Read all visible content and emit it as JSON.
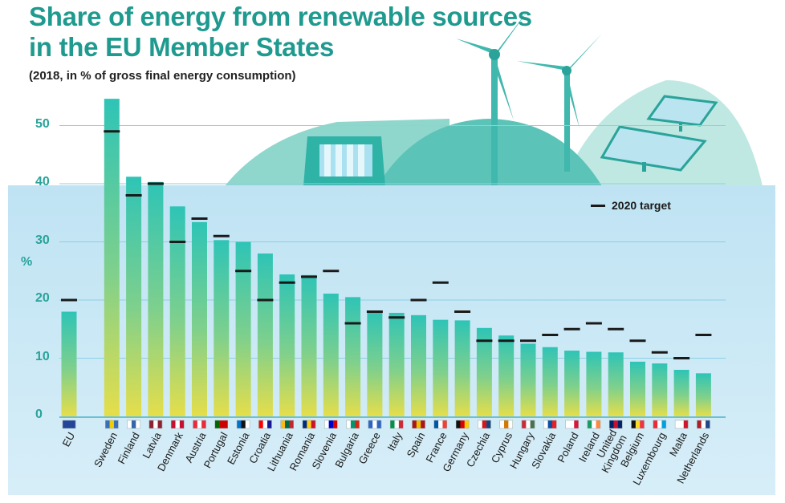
{
  "chart_data": {
    "type": "bar",
    "title": "Share of energy from renewable sources in the EU Member States",
    "title_lines": [
      "Share of energy from renewable sources",
      "in the EU Member States"
    ],
    "subtitle": "(2018, in % of gross final energy consumption)",
    "ylabel": "%",
    "ylim": [
      0,
      55
    ],
    "yticks": [
      0,
      10,
      20,
      30,
      40,
      50
    ],
    "grid": true,
    "legend": {
      "label": "2020 target",
      "placement": "top-right"
    },
    "categories": [
      "EU",
      "Sweden",
      "Finland",
      "Latvia",
      "Denmark",
      "Austria",
      "Portugal",
      "Estonia",
      "Croatia",
      "Lithuania",
      "Romania",
      "Slovenia",
      "Bulgaria",
      "Greece",
      "Italy",
      "Spain",
      "France",
      "Germany",
      "Czechia",
      "Cyprus",
      "Hungary",
      "Slovakia",
      "Poland",
      "Ireland",
      "United Kingdom",
      "Belgium",
      "Luxembourg",
      "Malta",
      "Netherlands"
    ],
    "category_label_lines": [
      [
        "EU"
      ],
      [
        "Sweden"
      ],
      [
        "Finland"
      ],
      [
        "Latvia"
      ],
      [
        "Denmark"
      ],
      [
        "Austria"
      ],
      [
        "Portugal"
      ],
      [
        "Estonia"
      ],
      [
        "Croatia"
      ],
      [
        "Lithuania"
      ],
      [
        "Romania"
      ],
      [
        "Slovenia"
      ],
      [
        "Bulgaria"
      ],
      [
        "Greece"
      ],
      [
        "Italy"
      ],
      [
        "Spain"
      ],
      [
        "France"
      ],
      [
        "Germany"
      ],
      [
        "Czechia"
      ],
      [
        "Cyprus"
      ],
      [
        "Hungary"
      ],
      [
        "Slovakia"
      ],
      [
        "Poland"
      ],
      [
        "Ireland"
      ],
      [
        "United",
        "Kingdom"
      ],
      [
        "Belgium"
      ],
      [
        "Luxembourg"
      ],
      [
        "Malta"
      ],
      [
        "Netherlands"
      ]
    ],
    "series": [
      {
        "name": "",
        "values": [
          18.0,
          54.6,
          41.2,
          40.3,
          36.1,
          33.4,
          30.3,
          30.0,
          28.0,
          24.4,
          24.3,
          21.1,
          20.5,
          18.0,
          17.8,
          17.4,
          16.6,
          16.5,
          15.2,
          13.9,
          12.5,
          11.9,
          11.3,
          11.1,
          11.0,
          9.4,
          9.1,
          8.0,
          7.4
        ]
      },
      {
        "name": "2020 target",
        "marker": "dash",
        "values": [
          20,
          49,
          38,
          40,
          30,
          34,
          31,
          25,
          20,
          23,
          24,
          25,
          16,
          18,
          17,
          20,
          23,
          18,
          13,
          13,
          13,
          14,
          15,
          16,
          15,
          13,
          11,
          10,
          14
        ]
      }
    ],
    "flag_colors": [
      [
        "#224499",
        "#224499",
        "#224499"
      ],
      [
        "#3a6fb5",
        "#f2cd00",
        "#3a6fb5"
      ],
      [
        "#ffffff",
        "#3366aa",
        "#ffffff"
      ],
      [
        "#8e2231",
        "#ffffff",
        "#8e2231"
      ],
      [
        "#c8102e",
        "#ffffff",
        "#c8102e"
      ],
      [
        "#ed2939",
        "#ffffff",
        "#ed2939"
      ],
      [
        "#006600",
        "#cc0000",
        "#cc0000"
      ],
      [
        "#0072ce",
        "#111111",
        "#ffffff"
      ],
      [
        "#ff0000",
        "#ffffff",
        "#171796"
      ],
      [
        "#fdb913",
        "#006a44",
        "#c1272d"
      ],
      [
        "#002b7f",
        "#fcd116",
        "#ce1126"
      ],
      [
        "#ffffff",
        "#0000cc",
        "#dd0000"
      ],
      [
        "#ffffff",
        "#00966e",
        "#d62612"
      ],
      [
        "#2d65c5",
        "#ffffff",
        "#2d65c5"
      ],
      [
        "#009246",
        "#ffffff",
        "#ce2b37"
      ],
      [
        "#aa151b",
        "#f1bf00",
        "#aa151b"
      ],
      [
        "#0055a4",
        "#ffffff",
        "#ef4135"
      ],
      [
        "#111111",
        "#dd0000",
        "#ffce00"
      ],
      [
        "#ffffff",
        "#d7141a",
        "#11457e"
      ],
      [
        "#ffffff",
        "#d57800",
        "#ffffff"
      ],
      [
        "#ce2939",
        "#ffffff",
        "#477050"
      ],
      [
        "#ffffff",
        "#0b4ea2",
        "#ee1c25"
      ],
      [
        "#ffffff",
        "#ffffff",
        "#dc143c"
      ],
      [
        "#169b62",
        "#ffffff",
        "#ff883e"
      ],
      [
        "#012169",
        "#c8102e",
        "#012169"
      ],
      [
        "#111111",
        "#fdda24",
        "#ef3340"
      ],
      [
        "#ed2939",
        "#ffffff",
        "#00a1de"
      ],
      [
        "#ffffff",
        "#ffffff",
        "#cf142b"
      ],
      [
        "#ae1c28",
        "#ffffff",
        "#21468b"
      ]
    ],
    "colors": {
      "title": "#1f9a8f",
      "axis_text": "#2aa39a",
      "bar_top": "#2ec4b6",
      "bar_bottom": "#e6de4a",
      "target": "#1a1a1a",
      "background": "#c6e6f4",
      "hill": "#84d2ca"
    }
  }
}
